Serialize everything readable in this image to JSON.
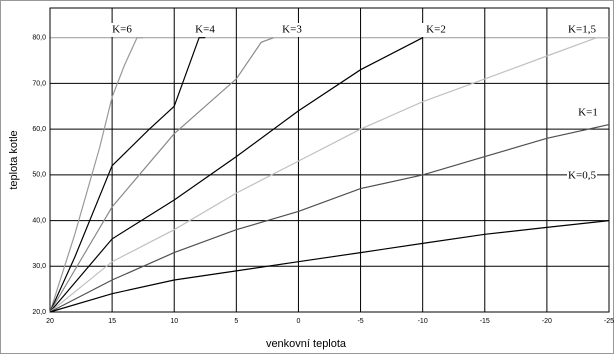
{
  "chart_data": {
    "type": "line",
    "x_label": "venkovní teplota",
    "y_label": "teplota kotle",
    "xlim": [
      20,
      -25
    ],
    "ylim": [
      20,
      86.5
    ],
    "xticks": [
      20,
      15,
      10,
      5,
      0,
      -5,
      -10,
      -15,
      -20,
      -25
    ],
    "yticks": [
      {
        "value": 20,
        "label": "20,0"
      },
      {
        "value": 30,
        "label": "30,0"
      },
      {
        "value": 40,
        "label": "40,0"
      },
      {
        "value": 50,
        "label": "50,0"
      },
      {
        "value": 60,
        "label": "60,0"
      },
      {
        "value": 70,
        "label": "70,0"
      },
      {
        "value": 80,
        "label": "80,0"
      }
    ],
    "grid": true,
    "series": [
      {
        "name": "K=6",
        "color": "#9a9a9a",
        "x": [
          20,
          18,
          16,
          15,
          14,
          13,
          12.5
        ],
        "values": [
          20,
          37,
          56,
          67,
          74,
          80,
          80
        ]
      },
      {
        "name": "K=4",
        "color": "#000000",
        "x": [
          20,
          18,
          15,
          12,
          10,
          8,
          7.5
        ],
        "values": [
          20,
          32,
          52,
          60,
          65,
          80,
          80
        ]
      },
      {
        "name": "K=3",
        "color": "#8a8a8a",
        "x": [
          20,
          15,
          10,
          5,
          3,
          2
        ],
        "values": [
          20,
          43,
          59,
          71,
          79,
          80
        ]
      },
      {
        "name": "K=2",
        "color": "#000000",
        "x": [
          20,
          15,
          10,
          5,
          0,
          -5,
          -10
        ],
        "values": [
          20,
          36,
          44.5,
          54,
          64,
          73,
          80
        ]
      },
      {
        "name": "K=1,5",
        "color": "#c0c0c0",
        "x": [
          20,
          15,
          10,
          5,
          0,
          -5,
          -10,
          -15,
          -20,
          -24,
          -25
        ],
        "values": [
          20,
          31,
          38,
          46,
          53,
          60,
          66,
          71,
          76,
          80,
          80
        ]
      },
      {
        "name": "K=1",
        "color": "#505050",
        "x": [
          20,
          15,
          10,
          5,
          0,
          -5,
          -10,
          -15,
          -20,
          -25
        ],
        "values": [
          20,
          27,
          33,
          38,
          42,
          47,
          50,
          54,
          58,
          61
        ]
      },
      {
        "name": "K=0,5",
        "color": "#000000",
        "x": [
          20,
          15,
          10,
          5,
          0,
          -5,
          -10,
          -15,
          -20,
          -25
        ],
        "values": [
          20,
          24,
          27,
          29,
          31,
          33,
          35,
          37,
          38.5,
          40
        ]
      }
    ]
  }
}
